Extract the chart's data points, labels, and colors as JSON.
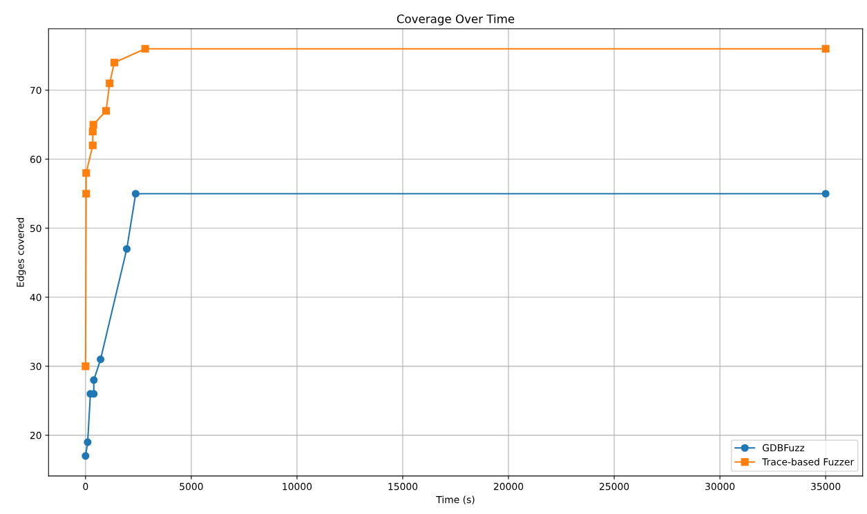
{
  "chart_data": {
    "type": "line",
    "title": "Coverage Over Time",
    "xlabel": "Time (s)",
    "ylabel": "Edges covered",
    "series": [
      {
        "name": "GDBFuzz",
        "color": "#1f77b4",
        "marker": "circle",
        "x": [
          0,
          100,
          230,
          390,
          390,
          710,
          1950,
          2370,
          35000
        ],
        "values": [
          17,
          19,
          26,
          26,
          28,
          31,
          47,
          55,
          55
        ]
      },
      {
        "name": "Trace-based Fuzzer",
        "color": "#ff7f0e",
        "marker": "square",
        "x": [
          0,
          30,
          30,
          340,
          340,
          370,
          970,
          1140,
          1360,
          2820,
          35000
        ],
        "values": [
          30,
          55,
          58,
          62,
          64,
          65,
          67,
          71,
          74,
          76,
          76
        ]
      }
    ],
    "xlim": [
      -1750,
      36750
    ],
    "ylim": [
      14.1,
      78.9
    ],
    "xticks": [
      0,
      5000,
      10000,
      15000,
      20000,
      25000,
      30000,
      35000
    ],
    "yticks": [
      20,
      30,
      40,
      50,
      60,
      70
    ],
    "grid": true,
    "legend": "bottom right",
    "line_style": "solid"
  }
}
